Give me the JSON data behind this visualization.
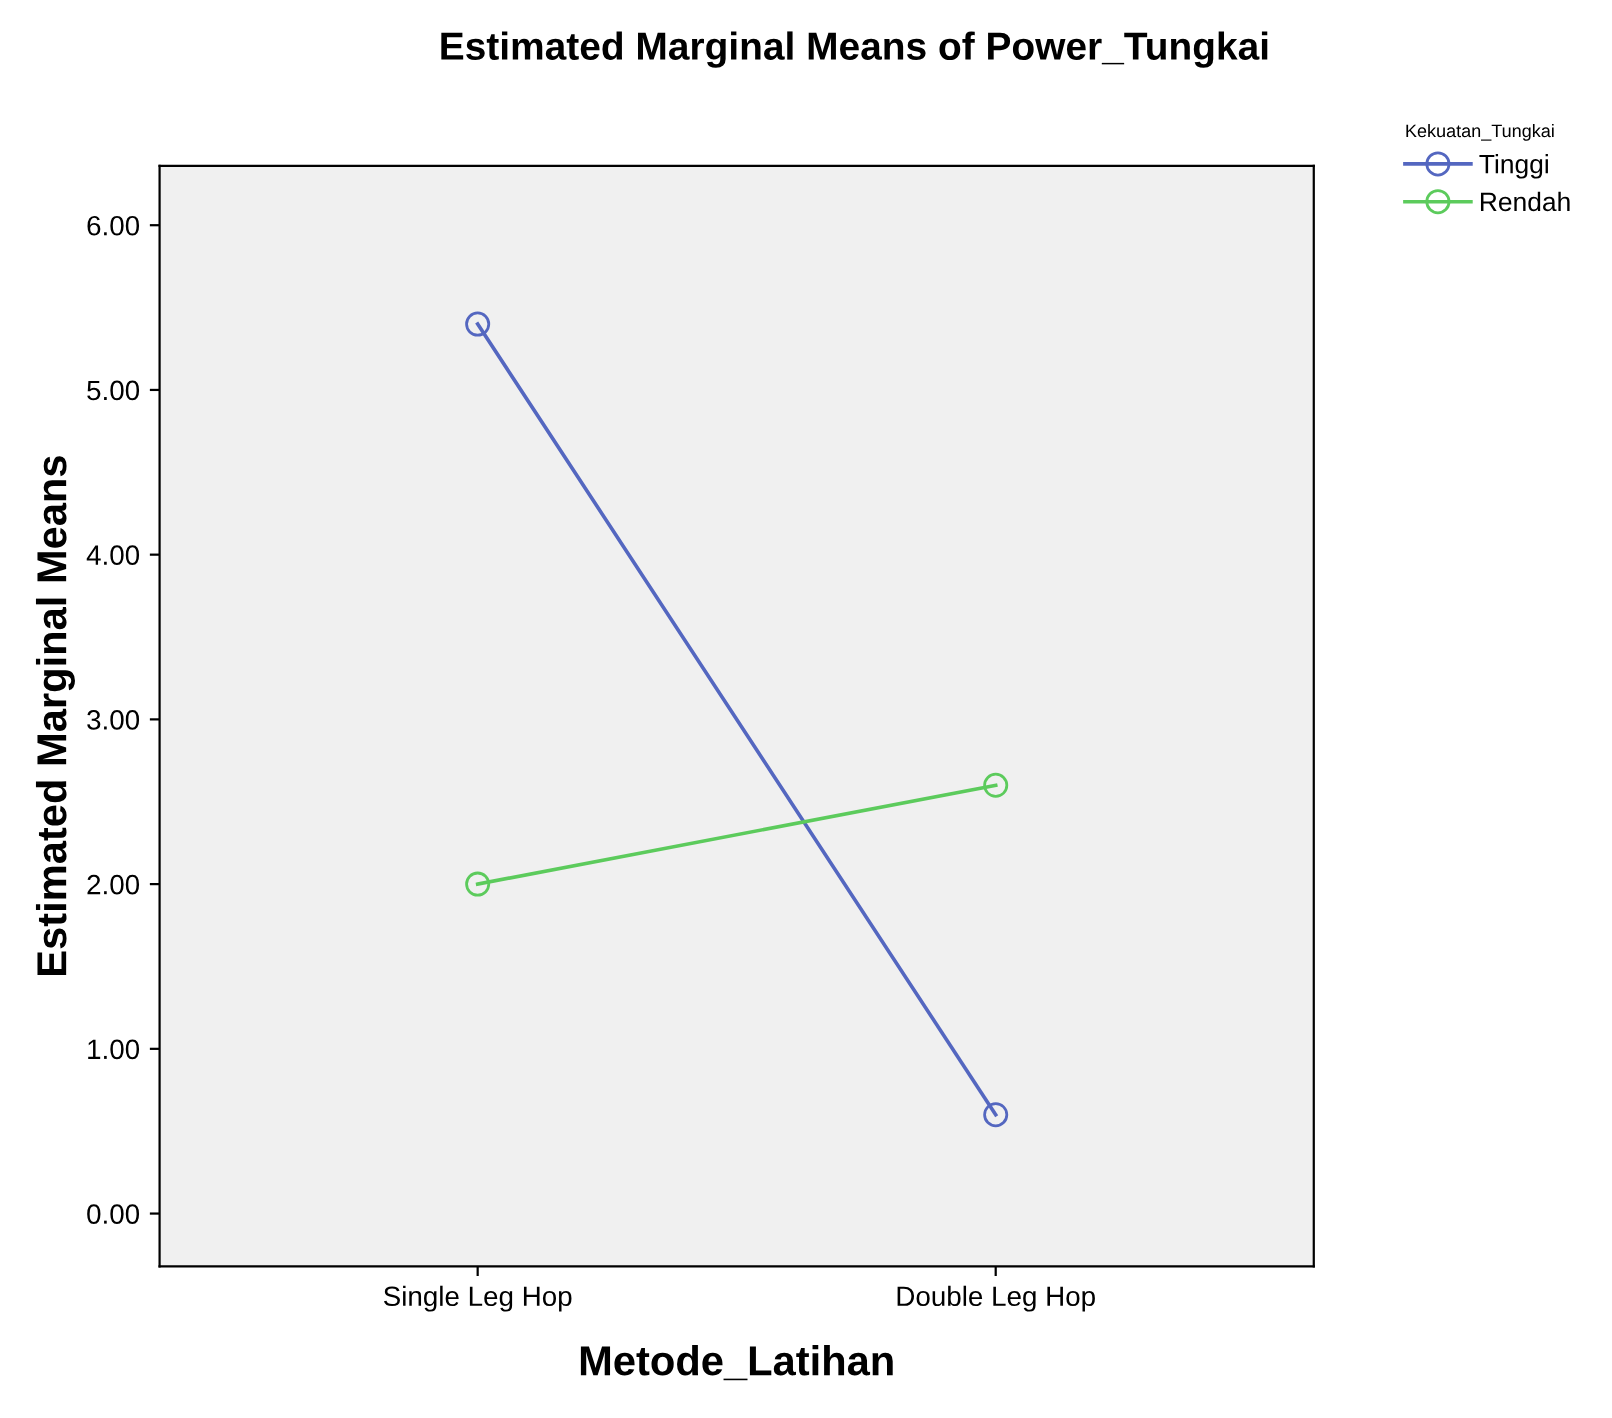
{
  "chart_data": {
    "type": "line",
    "title": "Estimated Marginal Means of Power_Tungkai",
    "xlabel": "Metode_Latihan",
    "ylabel": "Estimated Marginal Means",
    "legend_title": "Kekuatan_Tungkai",
    "categories": [
      "Single Leg Hop",
      "Double Leg Hop"
    ],
    "series": [
      {
        "name": "Tinggi",
        "color": "#5467c0",
        "values": [
          5.4,
          0.6
        ]
      },
      {
        "name": "Rendah",
        "color": "#5ccb5c",
        "values": [
          2.0,
          2.6
        ]
      }
    ],
    "ylim": [
      -0.32,
      6.36
    ],
    "yticks": [
      {
        "value": 0,
        "label": "0.00"
      },
      {
        "value": 1,
        "label": "1.00"
      },
      {
        "value": 2,
        "label": "2.00"
      },
      {
        "value": 3,
        "label": "3.00"
      },
      {
        "value": 4,
        "label": "4.00"
      },
      {
        "value": 5,
        "label": "5.00"
      },
      {
        "value": 6,
        "label": "6.00"
      }
    ],
    "marker": "circle",
    "grid": false,
    "legend": "top right"
  }
}
